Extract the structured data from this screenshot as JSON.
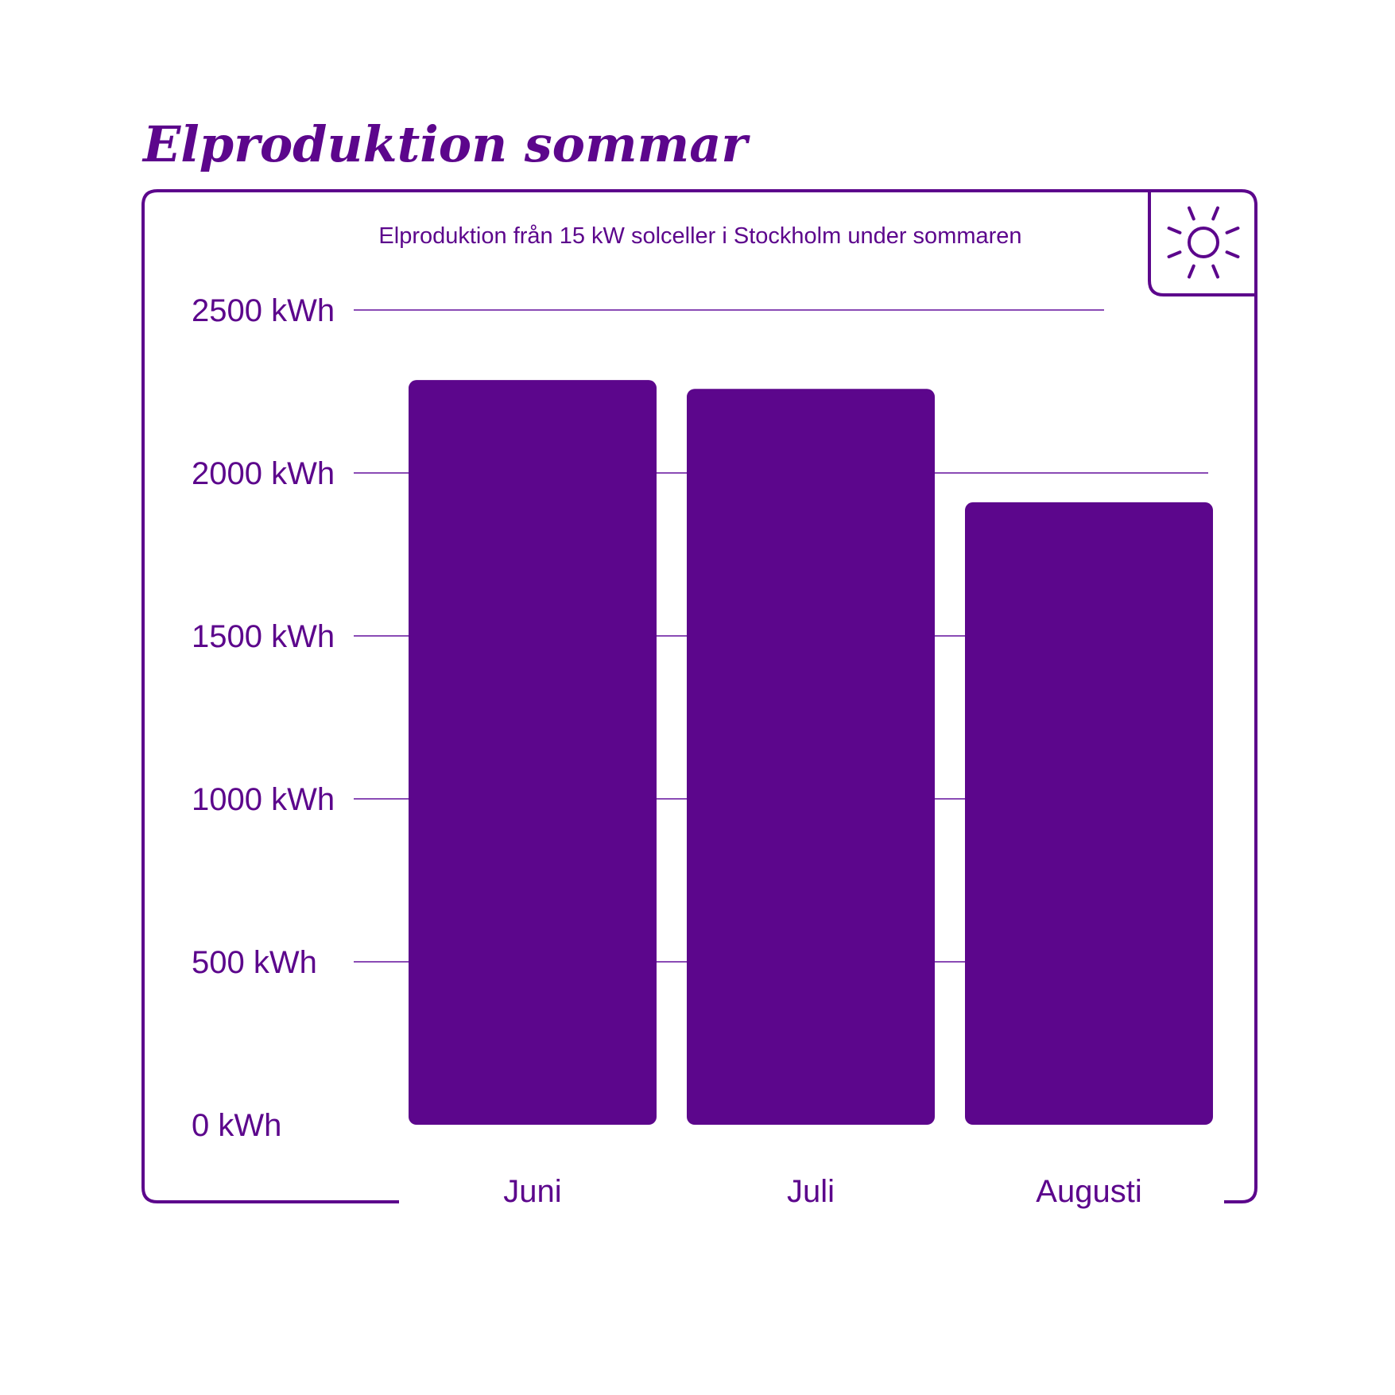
{
  "colors": {
    "primary": "#5c068c",
    "grid": "#8a4bb5",
    "background": "#ffffff"
  },
  "heading": "Elproduktion sommar",
  "icon": "sun-icon",
  "chart_data": {
    "type": "bar",
    "title": "Elproduktion från 15 kW solceller i Stockholm under sommaren",
    "categories": [
      "Juni",
      "Juli",
      "Augusti"
    ],
    "values": [
      2285,
      2258,
      1910
    ],
    "unit": "kWh",
    "ylim": [
      0,
      2500
    ],
    "yticks": [
      0,
      500,
      1000,
      1500,
      2000,
      2500
    ],
    "ytick_labels": [
      "0 kWh",
      "500 kWh",
      "1000 kWh",
      "1500 kWh",
      "2000 kWh",
      "2500 kWh"
    ],
    "grid": true,
    "legend": "none"
  }
}
